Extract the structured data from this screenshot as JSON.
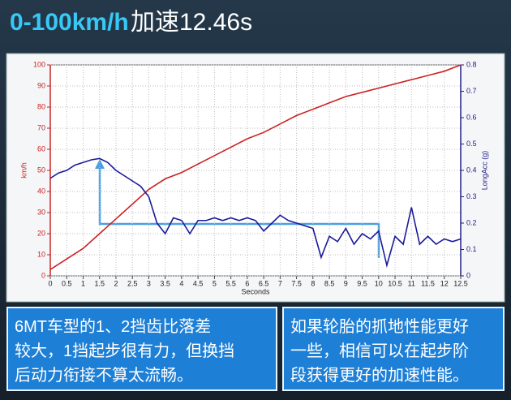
{
  "header": {
    "title_highlight": "0-100km/h",
    "title_rest": "加速12.46s"
  },
  "chart_data": {
    "type": "line",
    "xlabel": "Seconds",
    "ylabel": "km/h",
    "y2label": "LongAcc (g)",
    "xlim": [
      0,
      12.5
    ],
    "xticks": [
      0,
      0.5,
      1,
      1.5,
      2,
      2.5,
      3,
      3.5,
      4,
      4.5,
      5,
      5.5,
      6,
      6.5,
      7,
      7.5,
      8,
      8.5,
      9,
      9.5,
      10,
      10.5,
      11,
      11.5,
      12,
      12.5
    ],
    "ylim": [
      0,
      100
    ],
    "yticks": [
      0,
      10,
      20,
      30,
      40,
      50,
      60,
      70,
      80,
      90,
      100
    ],
    "y2lim": [
      0,
      0.8
    ],
    "y2ticks": [
      0,
      0.1,
      0.2,
      0.3,
      0.4,
      0.5,
      0.6,
      0.7,
      0.8
    ],
    "grid": true,
    "series": [
      {
        "name": "km/h",
        "color": "#cc2222",
        "axis": "y",
        "x": [
          0,
          0.5,
          1,
          1.5,
          2,
          2.5,
          3,
          3.5,
          4,
          4.5,
          5,
          5.5,
          6,
          6.5,
          7,
          7.5,
          8,
          8.5,
          9,
          9.5,
          10,
          10.5,
          11,
          11.5,
          12,
          12.5
        ],
        "values": [
          3,
          8,
          13,
          20,
          27,
          34,
          41,
          46,
          49,
          53,
          57,
          61,
          65,
          68,
          72,
          76,
          79,
          82,
          85,
          87,
          89,
          91,
          93,
          95,
          97,
          100
        ]
      },
      {
        "name": "LongAcc (g)",
        "color": "#1a1a9a",
        "axis": "y2",
        "x": [
          0,
          0.25,
          0.5,
          0.75,
          1,
          1.25,
          1.5,
          1.75,
          2,
          2.25,
          2.5,
          2.75,
          3,
          3.25,
          3.5,
          3.75,
          4,
          4.25,
          4.5,
          4.75,
          5,
          5.25,
          5.5,
          5.75,
          6,
          6.25,
          6.5,
          6.75,
          7,
          7.25,
          7.5,
          7.75,
          8,
          8.25,
          8.5,
          8.75,
          9,
          9.25,
          9.5,
          9.75,
          10,
          10.25,
          10.5,
          10.75,
          11,
          11.25,
          11.5,
          11.75,
          12,
          12.25,
          12.5
        ],
        "values": [
          0.37,
          0.39,
          0.4,
          0.42,
          0.43,
          0.44,
          0.445,
          0.43,
          0.4,
          0.38,
          0.36,
          0.34,
          0.3,
          0.2,
          0.16,
          0.22,
          0.21,
          0.16,
          0.21,
          0.21,
          0.22,
          0.21,
          0.22,
          0.21,
          0.22,
          0.21,
          0.17,
          0.2,
          0.23,
          0.21,
          0.2,
          0.19,
          0.18,
          0.07,
          0.15,
          0.13,
          0.18,
          0.12,
          0.16,
          0.14,
          0.17,
          0.04,
          0.15,
          0.12,
          0.26,
          0.12,
          0.15,
          0.12,
          0.14,
          0.13,
          0.14
        ]
      }
    ]
  },
  "captions": [
    [
      "6MT车型的1、2挡齿比落差",
      "较大，1挡起步很有力，但换挡",
      "后动力衔接不算太流畅。"
    ],
    [
      "如果轮胎的抓地性能更好",
      "一些，相信可以在起步阶",
      "段获得更好的加速性能。"
    ]
  ]
}
